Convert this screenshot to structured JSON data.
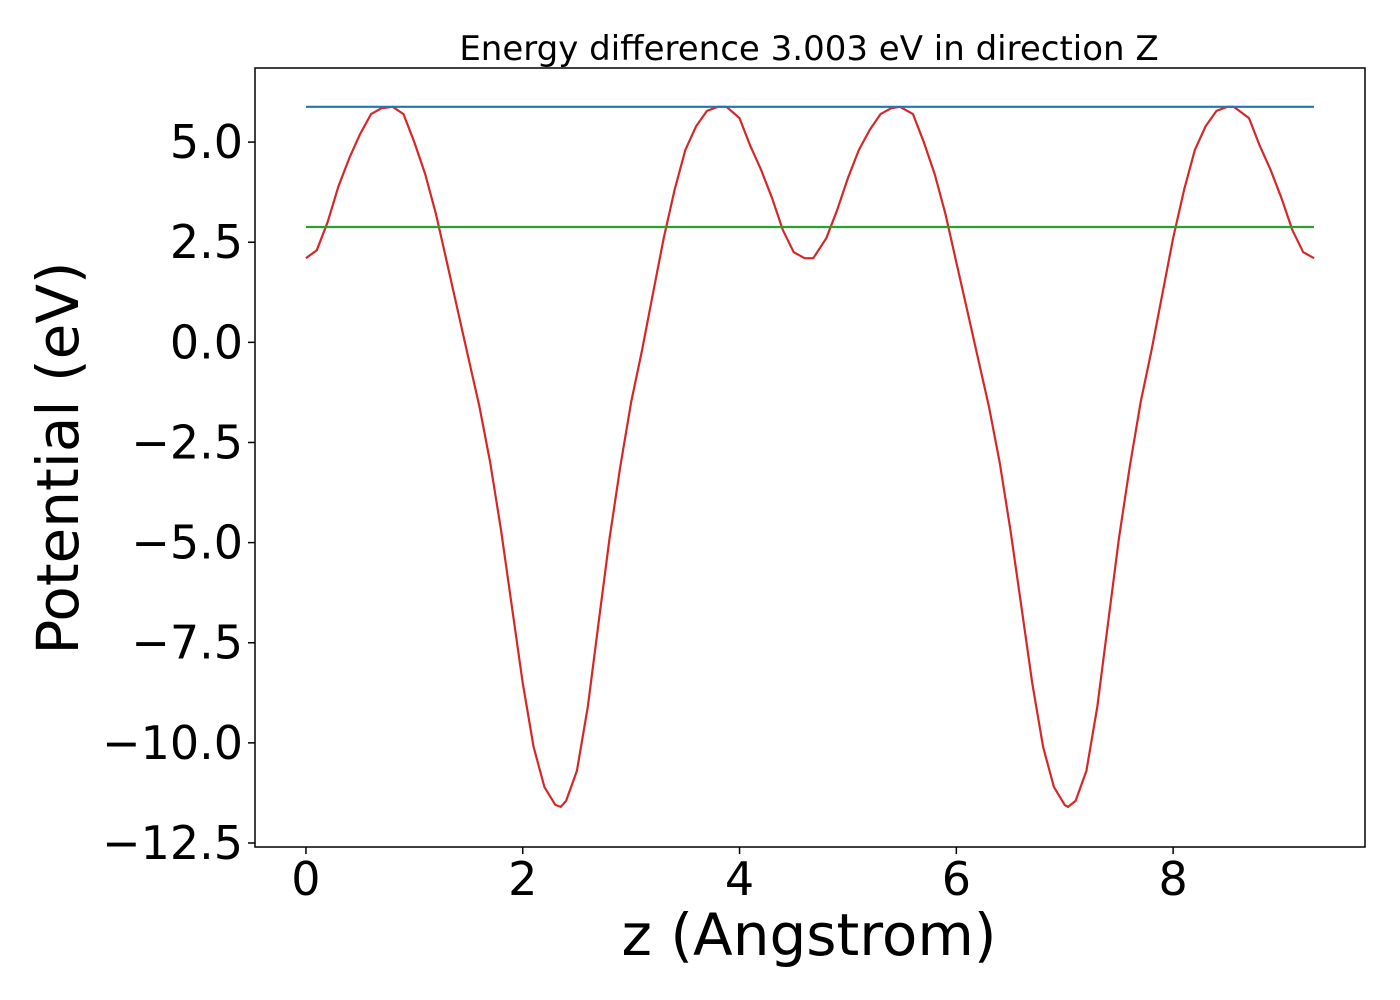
{
  "chart_data": {
    "type": "line",
    "title": "Energy difference 3.003 eV in direction Z",
    "xlabel": "z (Angstrom)",
    "ylabel": "Potential (eV)",
    "xlim": [
      -0.47,
      9.77
    ],
    "ylim": [
      -12.6,
      6.85
    ],
    "xticks": [
      0,
      2,
      4,
      6,
      8
    ],
    "xtick_labels": [
      "0",
      "2",
      "4",
      "6",
      "8"
    ],
    "yticks": [
      5.0,
      2.5,
      0.0,
      -2.5,
      -5.0,
      -7.5,
      -10.0,
      -12.5
    ],
    "ytick_labels": [
      "5.0",
      "2.5",
      "0.0",
      "−2.5",
      "−5.0",
      "−7.5",
      "−10.0",
      "−12.5"
    ],
    "grid": false,
    "legend": "none",
    "series": [
      {
        "color": "#d62728",
        "x": [
          0.0,
          0.1,
          0.2,
          0.3,
          0.4,
          0.5,
          0.6,
          0.7,
          0.8,
          0.9,
          1.0,
          1.1,
          1.2,
          1.3,
          1.4,
          1.5,
          1.6,
          1.7,
          1.8,
          1.9,
          2.0,
          2.1,
          2.2,
          2.3,
          2.35,
          2.4,
          2.5,
          2.6,
          2.7,
          2.8,
          2.9,
          3.0,
          3.1,
          3.2,
          3.3,
          3.4,
          3.5,
          3.6,
          3.7,
          3.8,
          3.88,
          4.0,
          4.1,
          4.2,
          4.3,
          4.4,
          4.5,
          4.6,
          4.68,
          4.8,
          4.9,
          5.0,
          5.1,
          5.2,
          5.3,
          5.4,
          5.48,
          5.6,
          5.7,
          5.8,
          5.9,
          6.0,
          6.1,
          6.2,
          6.3,
          6.4,
          6.5,
          6.6,
          6.7,
          6.8,
          6.9,
          7.0,
          7.03,
          7.1,
          7.2,
          7.3,
          7.4,
          7.5,
          7.6,
          7.7,
          7.8,
          7.9,
          8.0,
          8.1,
          8.2,
          8.3,
          8.4,
          8.5,
          8.56,
          8.7,
          8.8,
          8.9,
          9.0,
          9.1,
          9.2,
          9.3
        ],
        "values": [
          2.1,
          2.3,
          3.0,
          3.9,
          4.6,
          5.2,
          5.7,
          5.85,
          5.88,
          5.7,
          5.0,
          4.2,
          3.2,
          2.0,
          0.8,
          -0.4,
          -1.6,
          -3.0,
          -4.7,
          -6.6,
          -8.5,
          -10.1,
          -11.1,
          -11.55,
          -11.6,
          -11.45,
          -10.7,
          -9.1,
          -7.0,
          -4.9,
          -3.1,
          -1.5,
          -0.2,
          1.2,
          2.6,
          3.8,
          4.8,
          5.4,
          5.78,
          5.88,
          5.88,
          5.6,
          4.9,
          4.3,
          3.6,
          2.8,
          2.25,
          2.1,
          2.1,
          2.6,
          3.3,
          4.1,
          4.8,
          5.3,
          5.7,
          5.85,
          5.88,
          5.7,
          5.0,
          4.2,
          3.2,
          2.0,
          0.8,
          -0.4,
          -1.6,
          -3.0,
          -4.7,
          -6.6,
          -8.5,
          -10.1,
          -11.1,
          -11.55,
          -11.6,
          -11.45,
          -10.7,
          -9.1,
          -7.0,
          -4.9,
          -3.1,
          -1.5,
          -0.2,
          1.2,
          2.6,
          3.8,
          4.8,
          5.4,
          5.78,
          5.88,
          5.88,
          5.6,
          4.9,
          4.3,
          3.6,
          2.8,
          2.25,
          2.1
        ]
      },
      {
        "color": "#1f77b4",
        "x": [
          0.0,
          9.3
        ],
        "values": [
          5.88,
          5.88
        ]
      },
      {
        "color": "#2ca02c",
        "x": [
          0.0,
          9.3
        ],
        "values": [
          2.88,
          2.88
        ]
      }
    ]
  }
}
